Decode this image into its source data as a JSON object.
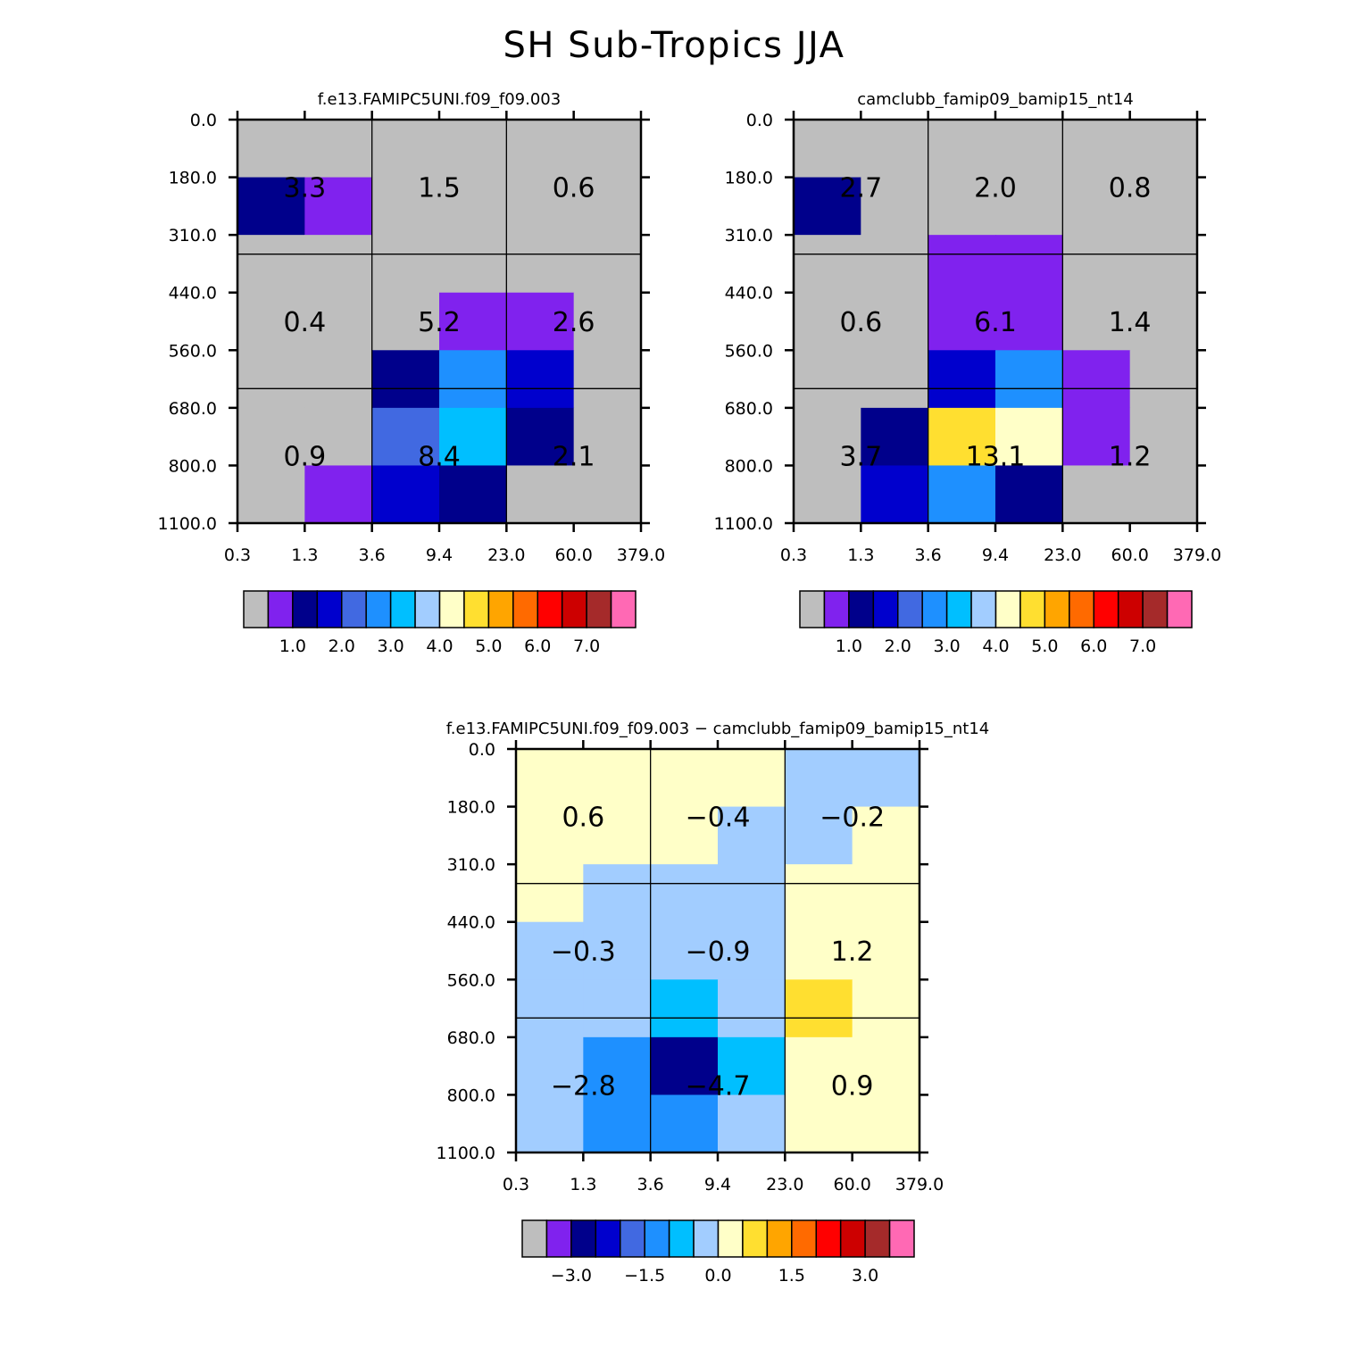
{
  "page_title": "SH Sub-Tropics JJA",
  "colors": {
    "band": [
      "#bebebe",
      "#8022ee",
      "#00008b",
      "#0000cd",
      "#4169e1",
      "#1e90ff",
      "#00bfff",
      "#a2cdff",
      "#ffffc8",
      "#ffdf30",
      "#ffa500",
      "#ff6a00",
      "#ff0000",
      "#cd0000",
      "#a52a2a",
      "#ff69b4"
    ]
  },
  "chart_data": [
    {
      "type": "heatmap",
      "title": "f.e13.FAMIPC5UNI.f09_f09.003",
      "x_ticks": [
        "0.3",
        "1.3",
        "3.6",
        "9.4",
        "23.0",
        "60.0",
        "379.0"
      ],
      "y_ticks": [
        "0.0",
        "180.0",
        "310.0",
        "440.0",
        "560.0",
        "680.0",
        "800.0",
        "1100.0"
      ],
      "fine_grid": [
        [
          0,
          0,
          0,
          0,
          0,
          0
        ],
        [
          2,
          1,
          0,
          0,
          0,
          0
        ],
        [
          0,
          0,
          0,
          0,
          0,
          0
        ],
        [
          0,
          0,
          0,
          1,
          1,
          0
        ],
        [
          0,
          0,
          2,
          5,
          3,
          0
        ],
        [
          0,
          0,
          4,
          6,
          2,
          0
        ],
        [
          0,
          1,
          3,
          2,
          0,
          0
        ]
      ],
      "cell_labels": [
        [
          "3.3",
          "1.5",
          "0.6"
        ],
        [
          "0.4",
          "5.2",
          "2.6"
        ],
        [
          "0.9",
          "8.4",
          "2.1"
        ]
      ],
      "colorbar_labels": [
        "1.0",
        "2.0",
        "3.0",
        "4.0",
        "5.0",
        "6.0",
        "7.0"
      ]
    },
    {
      "type": "heatmap",
      "title": "camclubb_famip09_bamip15_nt14",
      "x_ticks": [
        "0.3",
        "1.3",
        "3.6",
        "9.4",
        "23.0",
        "60.0",
        "379.0"
      ],
      "y_ticks": [
        "0.0",
        "180.0",
        "310.0",
        "440.0",
        "560.0",
        "680.0",
        "800.0",
        "1100.0"
      ],
      "fine_grid": [
        [
          0,
          0,
          0,
          0,
          0,
          0
        ],
        [
          2,
          0,
          0,
          0,
          0,
          0
        ],
        [
          0,
          0,
          1,
          1,
          0,
          0
        ],
        [
          0,
          0,
          1,
          1,
          0,
          0
        ],
        [
          0,
          0,
          3,
          5,
          1,
          0
        ],
        [
          0,
          2,
          9,
          8,
          1,
          0
        ],
        [
          0,
          3,
          5,
          2,
          0,
          0
        ]
      ],
      "cell_labels": [
        [
          "2.7",
          "2.0",
          "0.8"
        ],
        [
          "0.6",
          "6.1",
          "1.4"
        ],
        [
          "3.7",
          "13.1",
          "1.2"
        ]
      ],
      "colorbar_labels": [
        "1.0",
        "2.0",
        "3.0",
        "4.0",
        "5.0",
        "6.0",
        "7.0"
      ]
    },
    {
      "type": "heatmap",
      "title": "f.e13.FAMIPC5UNI.f09_f09.003 − camclubb_famip09_bamip15_nt14",
      "x_ticks": [
        "0.3",
        "1.3",
        "3.6",
        "9.4",
        "23.0",
        "60.0",
        "379.0"
      ],
      "y_ticks": [
        "0.0",
        "180.0",
        "310.0",
        "440.0",
        "560.0",
        "680.0",
        "800.0",
        "1100.0"
      ],
      "fine_grid": [
        [
          8,
          8,
          8,
          8,
          7,
          7
        ],
        [
          8,
          8,
          8,
          7,
          7,
          8
        ],
        [
          8,
          7,
          7,
          7,
          8,
          8
        ],
        [
          7,
          7,
          7,
          7,
          8,
          8
        ],
        [
          7,
          7,
          6,
          7,
          9,
          8
        ],
        [
          7,
          5,
          2,
          6,
          8,
          8
        ],
        [
          7,
          5,
          5,
          7,
          8,
          8
        ]
      ],
      "cell_labels": [
        [
          "0.6",
          "−0.4",
          "−0.2"
        ],
        [
          "−0.3",
          "−0.9",
          "1.2"
        ],
        [
          "−2.8",
          "−4.7",
          "0.9"
        ]
      ],
      "colorbar_labels": [
        "−3.0",
        "−1.5",
        "0.0",
        "1.5",
        "3.0"
      ]
    }
  ]
}
